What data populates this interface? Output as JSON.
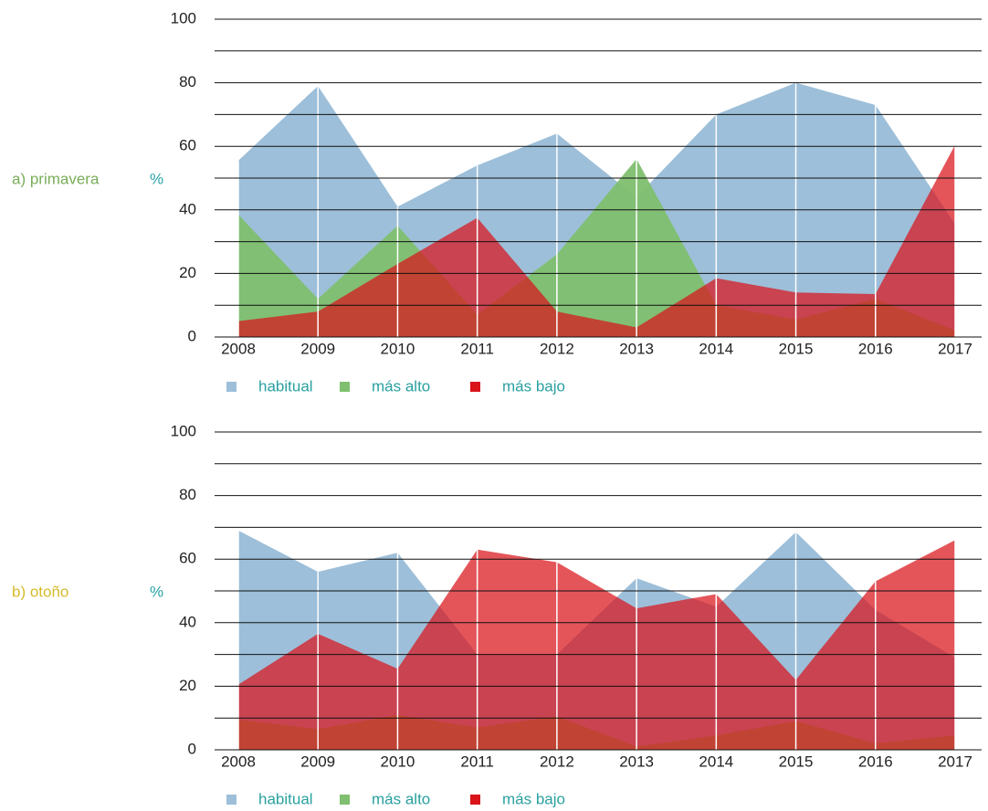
{
  "chart_data": [
    {
      "type": "area",
      "label": "a) primavera",
      "unit": "%",
      "categories": [
        "2008",
        "2009",
        "2010",
        "2011",
        "2012",
        "2013",
        "2014",
        "2015",
        "2016",
        "2017"
      ],
      "series": [
        {
          "name": "habitual",
          "color": "#9dbfd9",
          "values": [
            55.5,
            79,
            41,
            54,
            64,
            44,
            70,
            80,
            73,
            35.5
          ]
        },
        {
          "name": "más alto",
          "color": "#80bf6f",
          "values": [
            38.5,
            12,
            35,
            7,
            26,
            56,
            10,
            5.5,
            12,
            2
          ]
        },
        {
          "name": "más bajo",
          "color": "#d9141b",
          "values": [
            5,
            8,
            23,
            37.5,
            8,
            3,
            18.5,
            14,
            13.5,
            60.5
          ]
        }
      ],
      "ylim": [
        0,
        100
      ],
      "yticks": [
        0,
        20,
        40,
        60,
        80,
        100
      ],
      "minor_grid": [
        10,
        30,
        50,
        70,
        90
      ],
      "grid": true
    },
    {
      "type": "area",
      "label": "b) otoño",
      "unit": "%",
      "categories": [
        "2008",
        "2009",
        "2010",
        "2011",
        "2012",
        "2013",
        "2014",
        "2015",
        "2016",
        "2017"
      ],
      "series": [
        {
          "name": "habitual",
          "color": "#9dbfd9",
          "values": [
            69,
            56,
            62,
            30,
            30,
            54,
            45,
            68.5,
            44,
            29
          ]
        },
        {
          "name": "más alto",
          "color": "#80bf6f",
          "values": [
            9.5,
            6.5,
            11,
            7,
            10.5,
            1,
            4.5,
            9,
            2,
            4.5
          ]
        },
        {
          "name": "más bajo",
          "color": "#d9141b",
          "values": [
            20.5,
            36.5,
            25.5,
            63,
            59,
            44.5,
            49,
            22,
            53,
            66
          ]
        }
      ],
      "ylim": [
        0,
        100
      ],
      "yticks": [
        0,
        20,
        40,
        60,
        80,
        100
      ],
      "minor_grid": [
        10,
        30,
        50,
        70,
        90
      ],
      "grid": true
    }
  ]
}
